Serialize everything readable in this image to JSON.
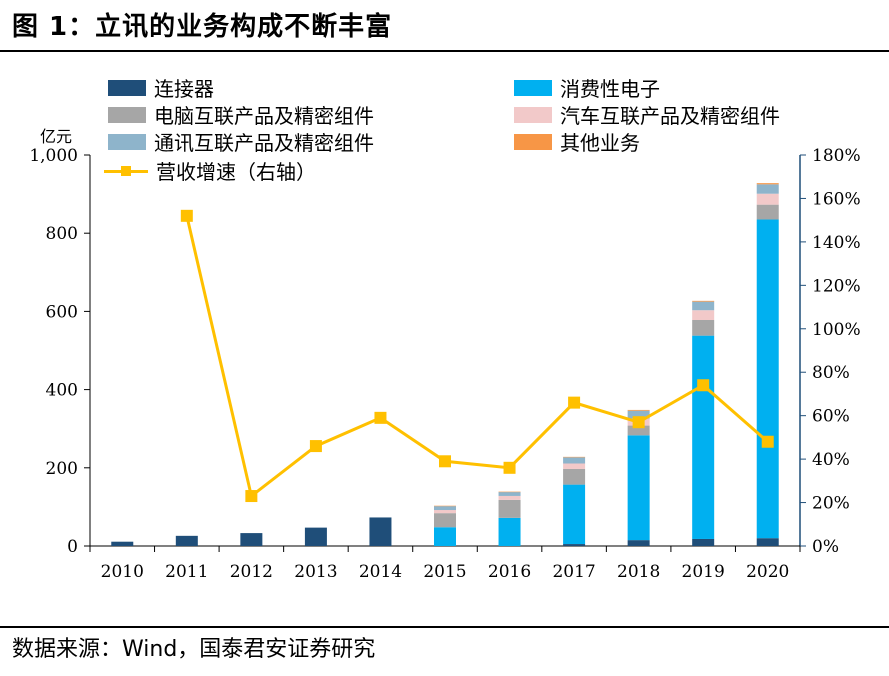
{
  "figure": {
    "title": "图 1：立讯的业务构成不断丰富",
    "source": "数据来源：Wind，国泰君安证券研究",
    "left_unit": "亿元"
  },
  "legend": {
    "connector": "连接器",
    "consumer": "消费性电子",
    "pc": "电脑互联产品及精密组件",
    "auto": "汽车互联产品及精密组件",
    "comm": "通讯互联产品及精密组件",
    "other": "其他业务",
    "growth": "营收增速（右轴）"
  },
  "chart_data": {
    "type": "bar",
    "stacked": true,
    "categories": [
      "2010",
      "2011",
      "2012",
      "2013",
      "2014",
      "2015",
      "2016",
      "2017",
      "2018",
      "2019",
      "2020"
    ],
    "series": [
      {
        "name": "连接器",
        "color": "#1F4E79",
        "values": [
          11,
          26,
          33,
          47,
          73,
          0,
          0,
          5,
          15,
          18,
          20
        ]
      },
      {
        "name": "消费性电子",
        "color": "#00B0F0",
        "values": [
          0,
          0,
          0,
          0,
          0,
          48,
          72,
          152,
          268,
          520,
          815
        ]
      },
      {
        "name": "电脑互联产品及精密组件",
        "color": "#A6A6A6",
        "values": [
          0,
          0,
          0,
          0,
          0,
          36,
          46,
          40,
          25,
          40,
          38
        ]
      },
      {
        "name": "汽车互联产品及精密组件",
        "color": "#F2C9C9",
        "values": [
          0,
          0,
          0,
          0,
          0,
          8,
          10,
          14,
          18,
          25,
          28
        ]
      },
      {
        "name": "通讯互联产品及精密组件",
        "color": "#8EB4CB",
        "values": [
          0,
          0,
          0,
          0,
          0,
          10,
          10,
          16,
          20,
          22,
          24
        ]
      },
      {
        "name": "其他业务",
        "color": "#F79646",
        "values": [
          0,
          0,
          0,
          0,
          0,
          1,
          1,
          1,
          2,
          2,
          3
        ]
      }
    ],
    "line": {
      "name": "营收增速（右轴）",
      "color": "#FFC000",
      "axis": "right",
      "values": [
        null,
        152,
        23,
        46,
        59,
        39,
        36,
        66,
        57,
        74,
        48
      ]
    },
    "ylim_left": [
      0,
      1000
    ],
    "yticks_left": [
      "0",
      "200",
      "400",
      "600",
      "800",
      "1,000"
    ],
    "ylim_right": [
      0,
      180
    ],
    "yticks_right": [
      "0%",
      "20%",
      "40%",
      "60%",
      "80%",
      "100%",
      "120%",
      "140%",
      "160%",
      "180%"
    ],
    "ylabel_left": "亿元"
  }
}
